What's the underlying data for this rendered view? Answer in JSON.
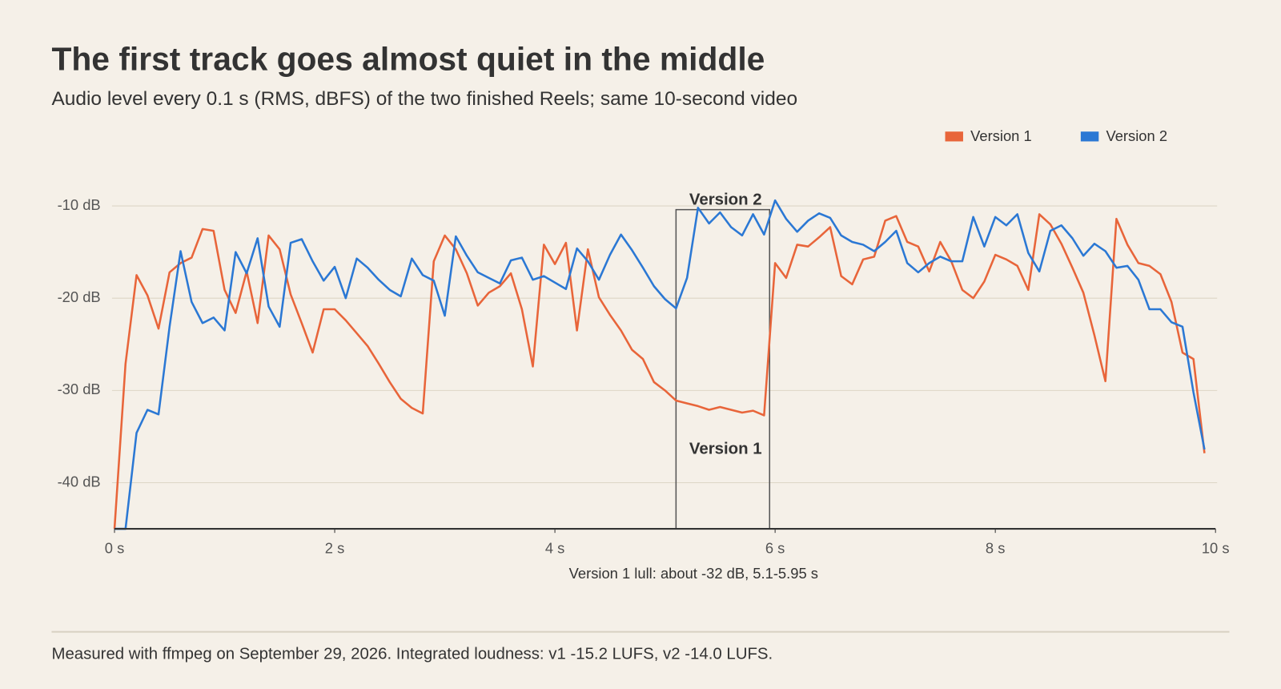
{
  "chart_data": {
    "type": "line",
    "title": "The first track goes almost quiet in the middle",
    "subtitle": "Audio level every 0.1 s (RMS, dBFS) of the two finished Reels; same 10-second video",
    "x_label": "Version 1 lull: about -32 dB, 5.1-5.95 s",
    "note": "Measured with ffmpeg on September 29, 2026. Integrated loudness: v1 -15.2 LUFS, v2 -14.0 LUFS.",
    "x": [
      0,
      0.1,
      0.2,
      0.3,
      0.4,
      0.5,
      0.6,
      0.7,
      0.8,
      0.9,
      1,
      1.1,
      1.2,
      1.3,
      1.4,
      1.5,
      1.6,
      1.7,
      1.8,
      1.9,
      2,
      2.1,
      2.2,
      2.3,
      2.4,
      2.5,
      2.6,
      2.7,
      2.8,
      2.9,
      3,
      3.1,
      3.2,
      3.3,
      3.4,
      3.5,
      3.6,
      3.7,
      3.8,
      3.9,
      4,
      4.1,
      4.2,
      4.3,
      4.4,
      4.5,
      4.6,
      4.7,
      4.8,
      4.9,
      5,
      5.1,
      5.2,
      5.3,
      5.4,
      5.5,
      5.6,
      5.7,
      5.8,
      5.9,
      6,
      6.1,
      6.2,
      6.3,
      6.4,
      6.5,
      6.6,
      6.7,
      6.8,
      6.9,
      7,
      7.1,
      7.2,
      7.3,
      7.4,
      7.5,
      7.6,
      7.7,
      7.8,
      7.9,
      8,
      8.1,
      8.2,
      8.3,
      8.4,
      8.5,
      8.6,
      8.7,
      8.8,
      8.9,
      9,
      9.1,
      9.2,
      9.3,
      9.4,
      9.5,
      9.6,
      9.7,
      9.8,
      9.9
    ],
    "series": [
      {
        "name": "Version 1",
        "color": "#e8653a",
        "values": [
          -45,
          -27.1,
          -17.5,
          -19.7,
          -23.3,
          -17.2,
          -16.2,
          -15.6,
          -12.5,
          -12.7,
          -19.1,
          -21.6,
          -17.1,
          -22.7,
          -13.2,
          -14.7,
          -19.6,
          -22.7,
          -25.9,
          -21.2,
          -21.2,
          -22.4,
          -23.8,
          -25.2,
          -27.1,
          -29.1,
          -30.9,
          -31.9,
          -32.5,
          -16.0,
          -13.2,
          -14.7,
          -17.3,
          -20.8,
          -19.4,
          -18.7,
          -17.3,
          -21.2,
          -27.4,
          -14.2,
          -16.3,
          -14.0,
          -23.5,
          -14.7,
          -19.9,
          -21.8,
          -23.5,
          -25.6,
          -26.6,
          -29.1,
          -30.0,
          -31.1,
          -31.4,
          -31.7,
          -32.1,
          -31.8,
          -32.1,
          -32.4,
          -32.2,
          -32.7,
          -16.2,
          -17.8,
          -14.2,
          -14.4,
          -13.4,
          -12.3,
          -17.6,
          -18.5,
          -15.8,
          -15.5,
          -11.6,
          -11.1,
          -13.9,
          -14.4,
          -17.1,
          -13.9,
          -16.0,
          -19.1,
          -20.0,
          -18.2,
          -15.3,
          -15.8,
          -16.5,
          -19.1,
          -10.9,
          -12.0,
          -14.1,
          -16.7,
          -19.4,
          -24.0,
          -29.0,
          -11.4,
          -14.2,
          -16.2,
          -16.5,
          -17.4,
          -20.4,
          -25.9,
          -26.6,
          -36.8
        ]
      },
      {
        "name": "Version 2",
        "color": "#2b78d4",
        "values": [
          -45,
          -45,
          -34.6,
          -32.1,
          -32.6,
          -23.1,
          -14.9,
          -20.4,
          -22.7,
          -22.1,
          -23.5,
          -15.0,
          -17.3,
          -13.5,
          -20.9,
          -23.1,
          -14.0,
          -13.6,
          -16.0,
          -18.1,
          -16.6,
          -20.0,
          -15.7,
          -16.7,
          -18.0,
          -19.1,
          -19.8,
          -15.7,
          -17.5,
          -18.1,
          -21.9,
          -13.3,
          -15.4,
          -17.2,
          -17.8,
          -18.4,
          -15.9,
          -15.6,
          -18.0,
          -17.6,
          -18.3,
          -19.0,
          -14.6,
          -16.0,
          -18.0,
          -15.3,
          -13.1,
          -14.8,
          -16.7,
          -18.7,
          -20.1,
          -21.1,
          -17.8,
          -10.2,
          -11.9,
          -10.7,
          -12.3,
          -13.2,
          -10.9,
          -13.1,
          -9.4,
          -11.4,
          -12.8,
          -11.6,
          -10.8,
          -11.3,
          -13.2,
          -13.9,
          -14.2,
          -14.9,
          -13.9,
          -12.7,
          -16.2,
          -17.2,
          -16.2,
          -15.5,
          -16.0,
          -16.0,
          -11.2,
          -14.4,
          -11.2,
          -12.1,
          -10.9,
          -15.1,
          -17.1,
          -12.7,
          -12.1,
          -13.5,
          -15.4,
          -14.1,
          -14.9,
          -16.7,
          -16.5,
          -18.0,
          -21.2,
          -21.2,
          -22.6,
          -23.1,
          -30.2,
          -36.4
        ]
      }
    ],
    "xlim": [
      0,
      10
    ],
    "xticks": [
      {
        "value": 0,
        "label": "0 s"
      },
      {
        "value": 2,
        "label": "2 s"
      },
      {
        "value": 4,
        "label": "4 s"
      },
      {
        "value": 6,
        "label": "6 s"
      },
      {
        "value": 8,
        "label": "8 s"
      },
      {
        "value": 10,
        "label": "10 s"
      }
    ],
    "ylim": [
      -45,
      -8
    ],
    "yticks": [
      {
        "value": -10,
        "label": "-10 dB"
      },
      {
        "value": -20,
        "label": "-20 dB"
      },
      {
        "value": -30,
        "label": "-30 dB"
      },
      {
        "value": -40,
        "label": "-40 dB"
      }
    ],
    "grid": true,
    "legend": "top-right",
    "highlight": {
      "x": [
        5.1,
        5.95
      ],
      "y": [
        -45,
        -10.4
      ]
    },
    "annotations": [
      {
        "text": "Version 2",
        "x": 5.55,
        "y": -9.4
      },
      {
        "text": "Version 1",
        "x": 5.55,
        "y": -36.4
      }
    ]
  }
}
